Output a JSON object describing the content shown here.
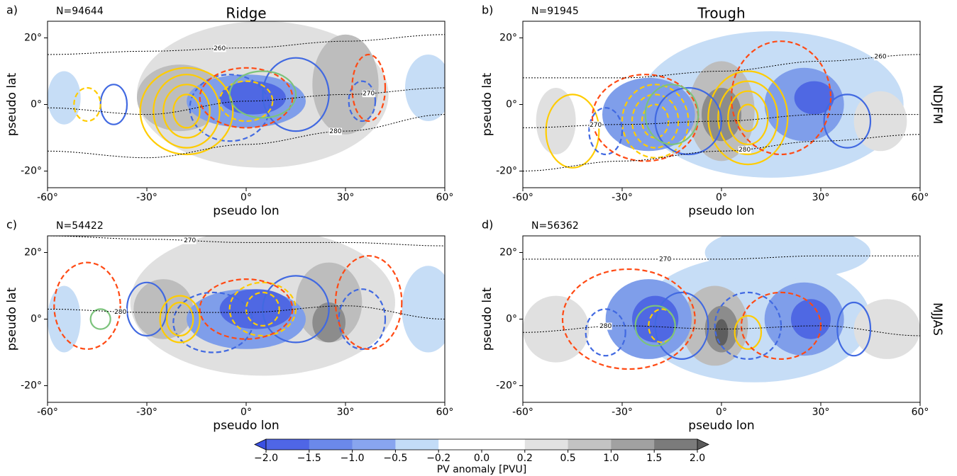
{
  "chart_data": [
    {
      "type": "contour",
      "panel_label": "a)",
      "count_label": "N=94644",
      "title": "Ridge",
      "xlabel": "pseudo lon",
      "ylabel": "pseudo lat",
      "xlim": [
        -60,
        60
      ],
      "ylim": [
        -25,
        25
      ],
      "xticks": [
        {
          "value": -60,
          "label": "-60°"
        },
        {
          "value": -30,
          "label": "-30°"
        },
        {
          "value": 0,
          "label": "0°"
        },
        {
          "value": 30,
          "label": "30°"
        },
        {
          "value": 60,
          "label": "60°"
        }
      ],
      "yticks": [
        {
          "value": -20,
          "label": "-20°"
        },
        {
          "value": 0,
          "label": "0°"
        },
        {
          "value": 20,
          "label": "20°"
        }
      ],
      "contour_labels": [
        260,
        270,
        280
      ]
    },
    {
      "type": "contour",
      "panel_label": "b)",
      "count_label": "N=91945",
      "title": "Trough",
      "row_label": "NDJFM",
      "xlabel": "pseudo lon",
      "ylabel": "pseudo lat",
      "xlim": [
        -60,
        60
      ],
      "ylim": [
        -25,
        25
      ],
      "xticks": [
        {
          "value": -60,
          "label": "-60°"
        },
        {
          "value": -30,
          "label": "-30°"
        },
        {
          "value": 0,
          "label": "0°"
        },
        {
          "value": 30,
          "label": "30°"
        },
        {
          "value": 60,
          "label": "60°"
        }
      ],
      "yticks": [
        {
          "value": -20,
          "label": "-20°"
        },
        {
          "value": 0,
          "label": "0°"
        },
        {
          "value": 20,
          "label": "20°"
        }
      ],
      "contour_labels": [
        260,
        270,
        280
      ]
    },
    {
      "type": "contour",
      "panel_label": "c)",
      "count_label": "N=54422",
      "xlabel": "pseudo lon",
      "ylabel": "pseudo lat",
      "xlim": [
        -60,
        60
      ],
      "ylim": [
        -25,
        25
      ],
      "xticks": [
        {
          "value": -60,
          "label": "-60°"
        },
        {
          "value": -30,
          "label": "-30°"
        },
        {
          "value": 0,
          "label": "0°"
        },
        {
          "value": 30,
          "label": "30°"
        },
        {
          "value": 60,
          "label": "60°"
        }
      ],
      "yticks": [
        {
          "value": -20,
          "label": "-20°"
        },
        {
          "value": 0,
          "label": "0°"
        },
        {
          "value": 20,
          "label": "20°"
        }
      ],
      "contour_labels": [
        270,
        280
      ]
    },
    {
      "type": "contour",
      "panel_label": "d)",
      "count_label": "N=56362",
      "row_label": "MJJAS",
      "xlabel": "pseudo lon",
      "ylabel": "pseudo lat",
      "xlim": [
        -60,
        60
      ],
      "ylim": [
        -25,
        25
      ],
      "xticks": [
        {
          "value": -60,
          "label": "-60°"
        },
        {
          "value": -30,
          "label": "-30°"
        },
        {
          "value": 0,
          "label": "0°"
        },
        {
          "value": 30,
          "label": "30°"
        },
        {
          "value": 60,
          "label": "60°"
        }
      ],
      "yticks": [
        {
          "value": -20,
          "label": "-20°"
        },
        {
          "value": 0,
          "label": "0°"
        },
        {
          "value": 20,
          "label": "20°"
        }
      ],
      "contour_labels": [
        270,
        280
      ]
    },
    {
      "type": "colorbar",
      "label": "PV anomaly [PVU]",
      "ticks": [
        {
          "value": -2,
          "label": "−2.0"
        },
        {
          "value": -1.5,
          "label": "−1.5"
        },
        {
          "value": -1,
          "label": "−1.0"
        },
        {
          "value": -0.5,
          "label": "−0.5"
        },
        {
          "value": -0.2,
          "label": "−0.2"
        },
        {
          "value": 0,
          "label": "0.0"
        },
        {
          "value": 0.2,
          "label": "0.2"
        },
        {
          "value": 0.5,
          "label": "0.5"
        },
        {
          "value": 1,
          "label": "1.0"
        },
        {
          "value": 1.5,
          "label": "1.5"
        },
        {
          "value": 2,
          "label": "2.0"
        }
      ],
      "colors": [
        "#4f66e6",
        "#6b89ea",
        "#88a5ef",
        "#c3dcf7",
        "#ffffff",
        "#ffffff",
        "#e2e2e2",
        "#c3c3c3",
        "#a1a1a1",
        "#7b7b7b"
      ],
      "under_color": "#3a50e2",
      "over_color": "#5a5a5a"
    }
  ]
}
